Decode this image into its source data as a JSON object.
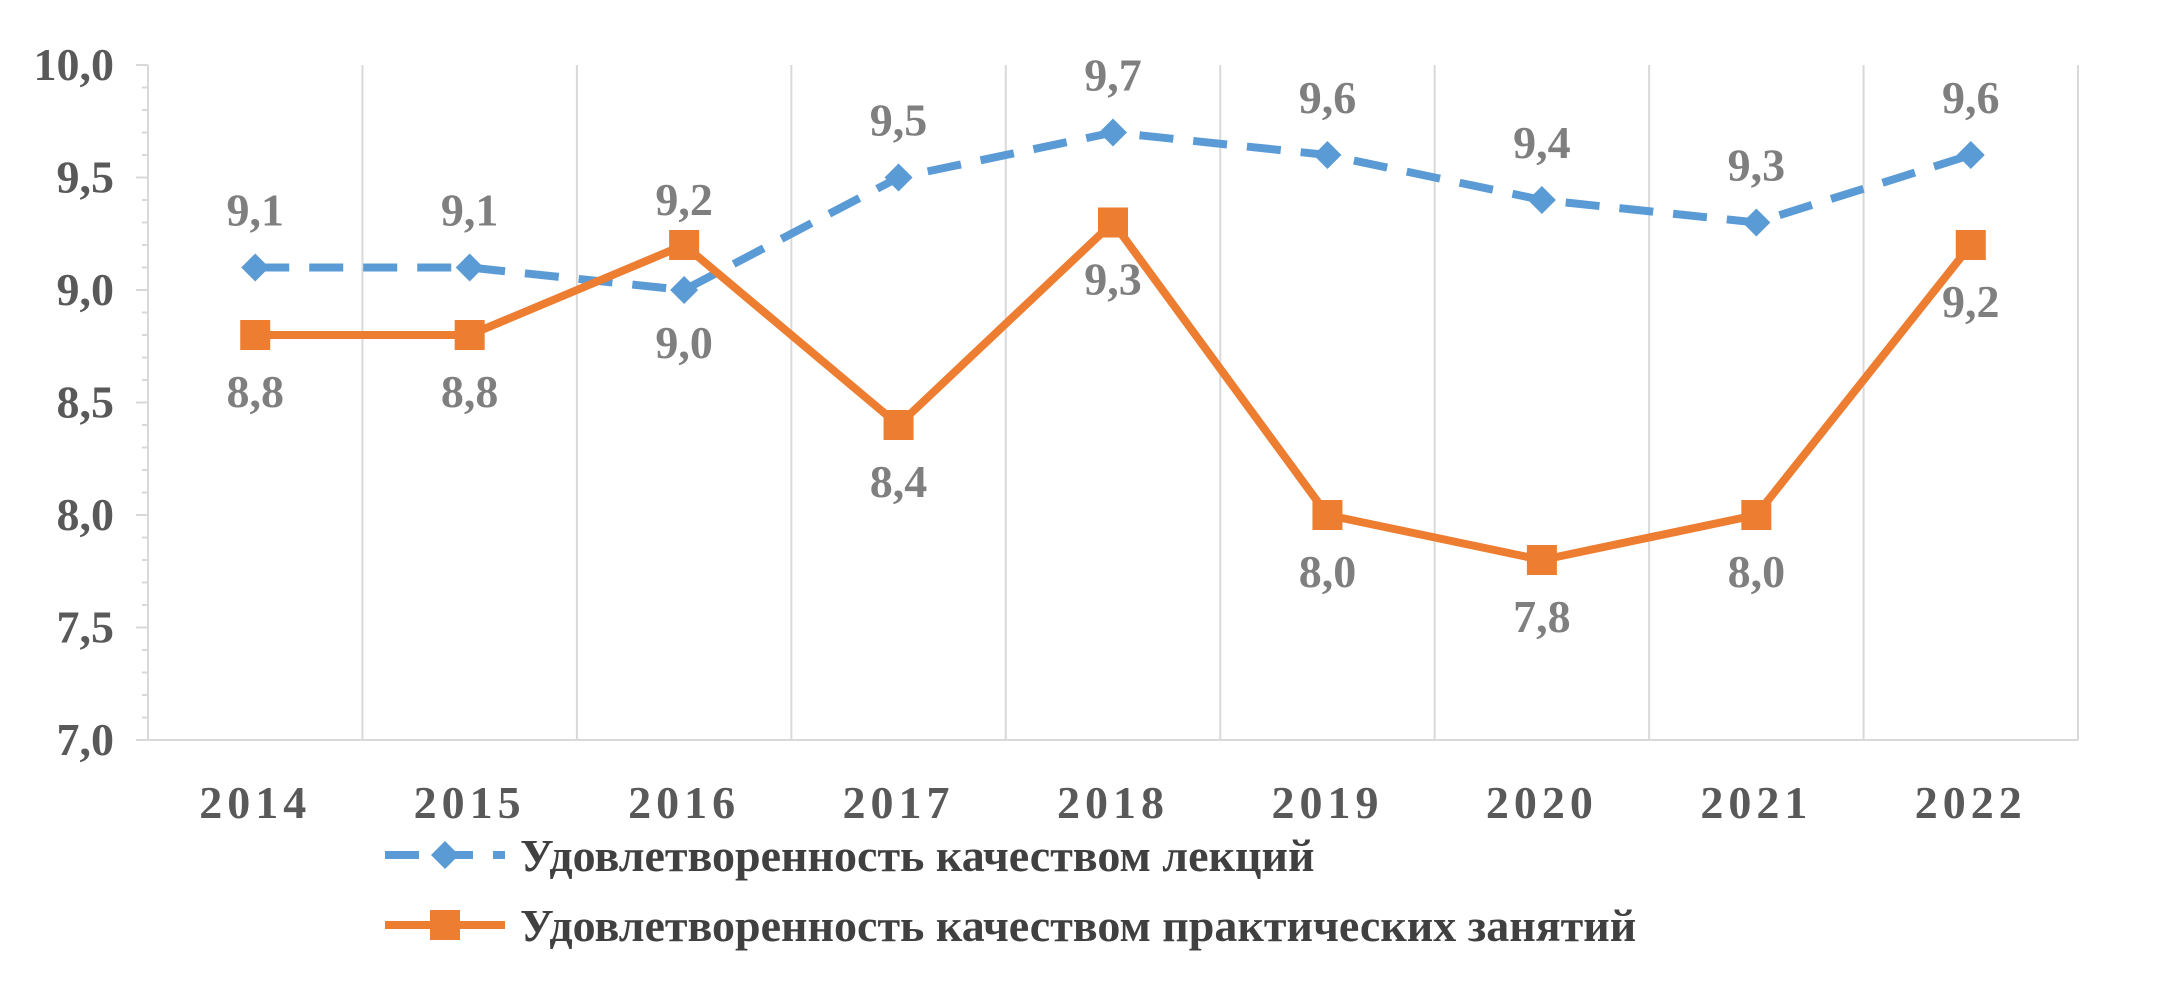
{
  "chart_data": {
    "type": "line",
    "title": "",
    "xlabel": "",
    "ylabel": "",
    "categories": [
      "2014",
      "2015",
      "2016",
      "2017",
      "2018",
      "2019",
      "2020",
      "2021",
      "2022"
    ],
    "ylim": [
      7.0,
      10.0
    ],
    "yticks": [
      "7,0",
      "7,5",
      "8,0",
      "8,5",
      "9,0",
      "9,5",
      "10,0"
    ],
    "grid": "vertical",
    "legend_position": "bottom",
    "series": [
      {
        "name": "Удовлетворенность качеством лекций",
        "values": [
          9.1,
          9.1,
          9.0,
          9.5,
          9.7,
          9.6,
          9.4,
          9.3,
          9.6
        ],
        "labels": [
          "9,1",
          "9,1",
          "9,0",
          "9,5",
          "9,7",
          "9,6",
          "9,4",
          "9,3",
          "9,6"
        ],
        "color": "#5b9bd5",
        "line_style": "dashed",
        "marker": "diamond"
      },
      {
        "name": "Удовлетворенность качеством практических занятий",
        "values": [
          8.8,
          8.8,
          9.2,
          8.4,
          9.3,
          8.0,
          7.8,
          8.0,
          9.2
        ],
        "labels": [
          "8,8",
          "8,8",
          "9,2",
          "8,4",
          "9,3",
          "8,0",
          "7,8",
          "8,0",
          "9,2"
        ],
        "color": "#ed7d31",
        "line_style": "solid",
        "marker": "square"
      }
    ]
  }
}
